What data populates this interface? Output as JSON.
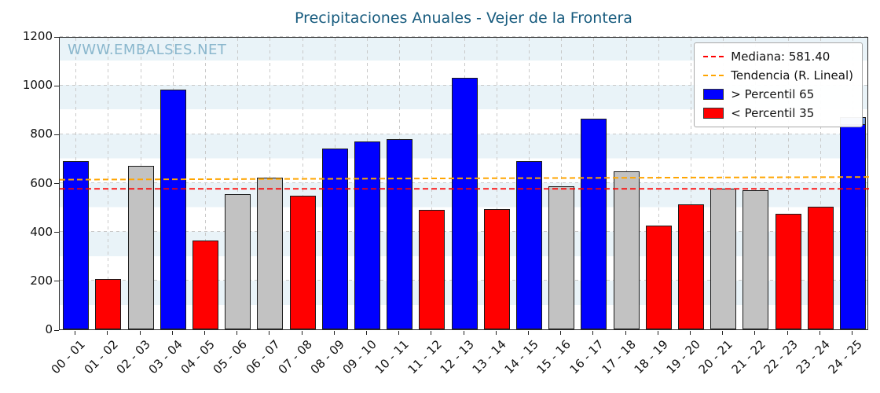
{
  "title": "Precipitaciones Anuales - Vejer de la Frontera",
  "watermark": "WWW.EMBALSES.NET",
  "legend": {
    "median": "Mediana: 581.40",
    "trend": "Tendencia (R. Lineal)",
    "above": "> Percentil 65",
    "below": "< Percentil 35"
  },
  "colors": {
    "above": "#0000ff",
    "below": "#ff0000",
    "mid": "#c2c2c2",
    "overlay": "#7aa0e0",
    "median_line": "#ff0000",
    "trend_line": "#ffa500",
    "title": "#175b7e",
    "watermark": "#8ab7cd",
    "band": "#e9f3f8"
  },
  "chart_data": {
    "type": "bar",
    "title": "Precipitaciones Anuales - Vejer de la Frontera",
    "xlabel": "",
    "ylabel": "",
    "ylim": [
      0,
      1200
    ],
    "yticks": [
      0,
      200,
      400,
      600,
      800,
      1000,
      1200
    ],
    "grid": true,
    "legend_position": "upper right",
    "categories": [
      "00 - 01",
      "01 - 02",
      "02 - 03",
      "03 - 04",
      "04 - 05",
      "05 - 06",
      "06 - 07",
      "07 - 08",
      "08 - 09",
      "09 - 10",
      "10 - 11",
      "11 - 12",
      "12 - 13",
      "13 - 14",
      "14 - 15",
      "15 - 16",
      "16 - 17",
      "17 - 18",
      "18 - 19",
      "19 - 20",
      "20 - 21",
      "21 - 22",
      "22 - 23",
      "23 - 24",
      "24 - 25"
    ],
    "values": [
      690,
      205,
      670,
      980,
      365,
      555,
      620,
      548,
      740,
      768,
      778,
      488,
      1030,
      492,
      690,
      585,
      862,
      648,
      425,
      512,
      575,
      570,
      472,
      502,
      868
    ],
    "bar_classes": [
      "above",
      "below",
      "mid",
      "above",
      "below",
      "mid",
      "mid",
      "below",
      "above",
      "above",
      "above",
      "below",
      "above",
      "below",
      "above",
      "mid",
      "above",
      "mid",
      "below",
      "below",
      "mid",
      "mid",
      "below",
      "below",
      "above"
    ],
    "median": 581.4,
    "trend_line": {
      "y_start": 619,
      "y_end": 630
    },
    "partial_overlay": {
      "index": 24,
      "from": 838,
      "to": 868
    }
  }
}
